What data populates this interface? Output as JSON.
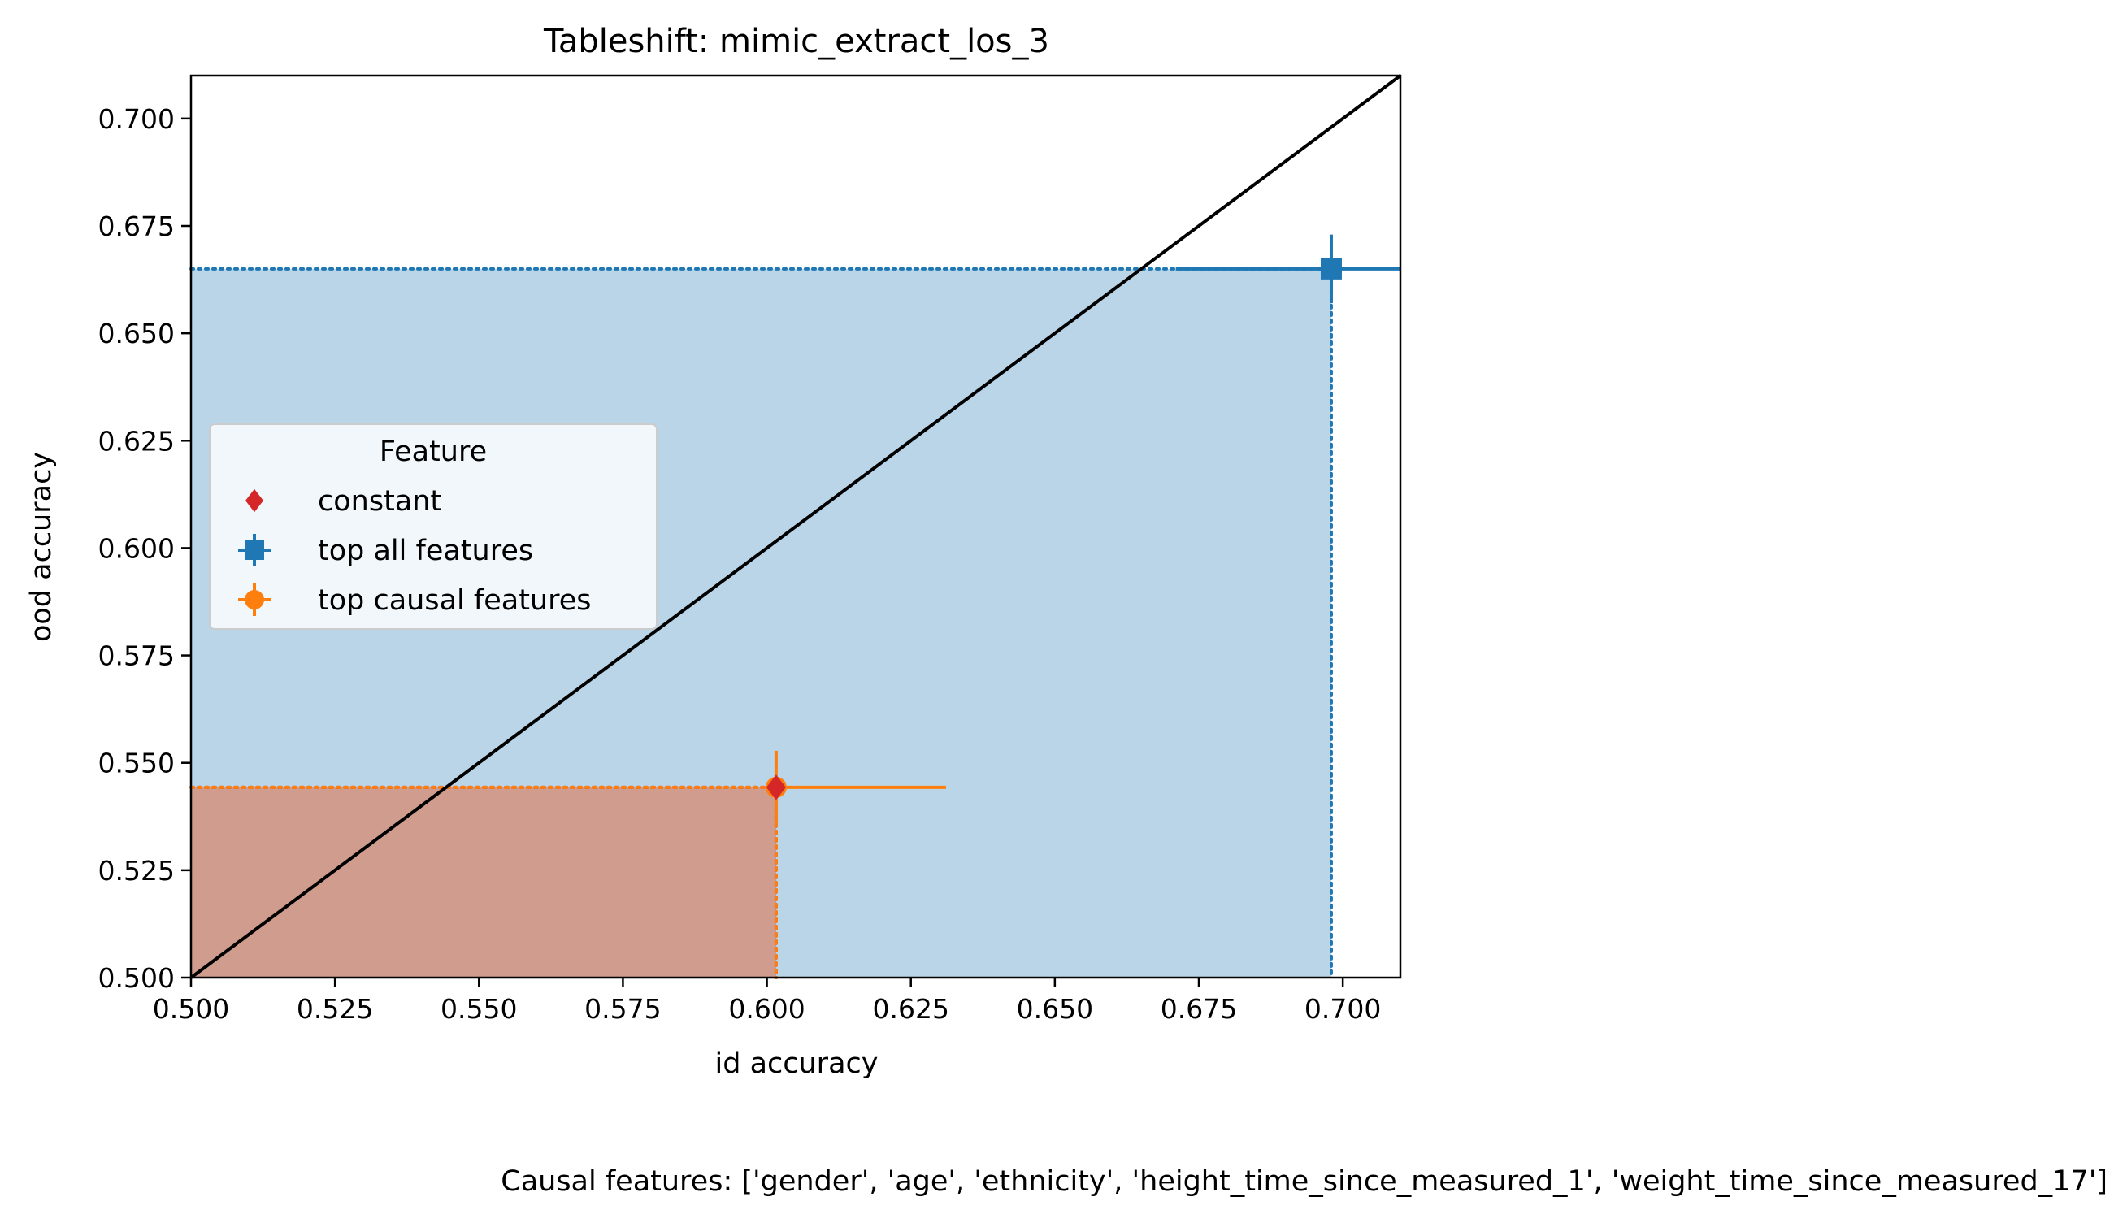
{
  "chart_data": {
    "type": "scatter",
    "title": "Tableshift: mimic_extract_los_3",
    "xlabel": "id accuracy",
    "ylabel": "ood accuracy",
    "xlim": [
      0.5,
      0.71
    ],
    "ylim": [
      0.5,
      0.71
    ],
    "xticks": [
      "0.500",
      "0.525",
      "0.550",
      "0.575",
      "0.600",
      "0.625",
      "0.650",
      "0.675",
      "0.700"
    ],
    "yticks": [
      "0.500",
      "0.525",
      "0.550",
      "0.575",
      "0.600",
      "0.625",
      "0.650",
      "0.675",
      "0.700"
    ],
    "xtick_values": [
      0.5,
      0.525,
      0.55,
      0.575,
      0.6,
      0.625,
      0.65,
      0.675,
      0.7
    ],
    "ytick_values": [
      0.5,
      0.525,
      0.55,
      0.575,
      0.6,
      0.625,
      0.65,
      0.675,
      0.7
    ],
    "grid": false,
    "diagonal_line": true,
    "legend": {
      "title": "Feature",
      "placement": "center-left",
      "entries": [
        "constant",
        "top all features",
        "top causal features"
      ]
    },
    "series": [
      {
        "name": "constant",
        "marker": "diamond",
        "color": "#d62728",
        "x": 0.6016,
        "y": 0.5443,
        "xerr": [
          0,
          0
        ],
        "yerr": [
          0,
          0
        ]
      },
      {
        "name": "top all features",
        "marker": "square",
        "color": "#1f77b4",
        "x": 0.698,
        "y": 0.665,
        "xerr": [
          0.027,
          0.012
        ],
        "yerr": [
          0.008,
          0.008
        ]
      },
      {
        "name": "top causal features",
        "marker": "circle",
        "color": "#ff7f0e",
        "x": 0.6016,
        "y": 0.5443,
        "xerr": [
          0,
          0.0295
        ],
        "yerr": [
          0.0085,
          0.0085
        ]
      }
    ],
    "footnote": "Causal features: ['gender', 'age', 'ethnicity', 'height_time_since_measured_1', 'weight_time_since_measured_17']"
  }
}
